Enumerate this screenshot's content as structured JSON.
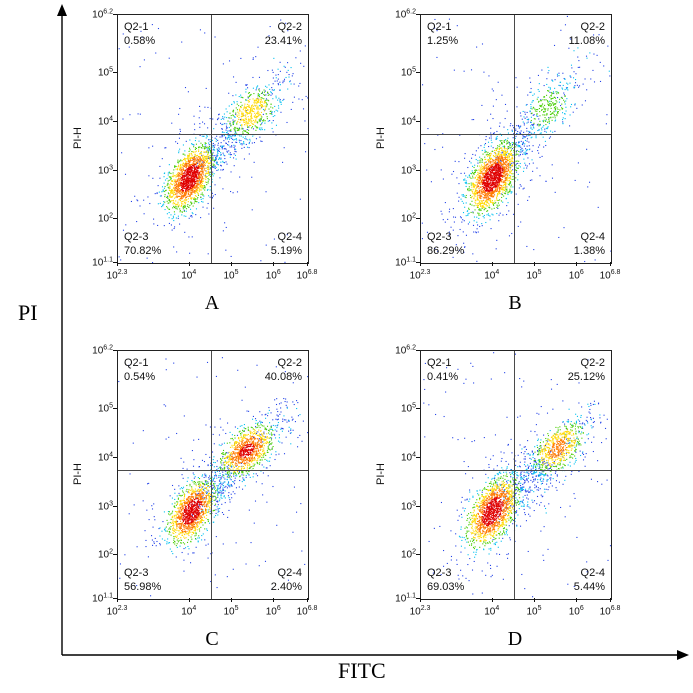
{
  "chart_data": {
    "type": "scatter",
    "subtype": "flow_cytometry_pseudocolor_density",
    "outer_axes": {
      "y_label": "PI",
      "x_label": "FITC"
    },
    "axes": {
      "scale": "log10",
      "base": "10",
      "xlim_log10": [
        2.3,
        6.8
      ],
      "ylim_log10": [
        1.1,
        6.2
      ],
      "x_ticks": [
        {
          "v": 2.3,
          "exp": "2.3"
        },
        {
          "v": 4,
          "exp": "4"
        },
        {
          "v": 5,
          "exp": "5"
        },
        {
          "v": 6,
          "exp": "6"
        },
        {
          "v": 6.8,
          "exp": "6.8"
        }
      ],
      "y_ticks": [
        {
          "v": 6.2,
          "exp": "6.2"
        },
        {
          "v": 5,
          "exp": "5"
        },
        {
          "v": 4,
          "exp": "4"
        },
        {
          "v": 3,
          "exp": "3"
        },
        {
          "v": 2,
          "exp": "2"
        },
        {
          "v": 1.1,
          "exp": "1.1"
        }
      ]
    },
    "gate": {
      "x_log10": 4.5,
      "y_log10": 3.75
    },
    "render": {
      "colors": [
        "#e00000",
        "#ff7a00",
        "#ffd900",
        "#46cd00",
        "#00c0f0",
        "#2342e8"
      ],
      "thresholds": [
        -0.4,
        -1.0,
        -1.8,
        -2.8,
        -4.3
      ]
    },
    "panels": [
      {
        "label": "A",
        "y_axis_label": "PI-H",
        "seed": 11,
        "quadrants": [
          {
            "name": "Q2-1",
            "pct": "0.58%"
          },
          {
            "name": "Q2-2",
            "pct": "23.41%"
          },
          {
            "name": "Q2-3",
            "pct": "70.82%"
          },
          {
            "name": "Q2-4",
            "pct": "5.19%"
          }
        ],
        "clusters": [
          {
            "type": "gauss",
            "cx": 4.0,
            "cy": 2.85,
            "sx": 0.26,
            "sy": 0.31,
            "rho": 0.5,
            "n": 1600,
            "tail": 0.12
          },
          {
            "type": "gauss",
            "cx": 5.45,
            "cy": 4.2,
            "sx": 0.3,
            "sy": 0.26,
            "rho": 0.45,
            "n": 520,
            "tail": 0.15
          },
          {
            "type": "line",
            "x1": 4.25,
            "y1": 3.05,
            "x2": 5.15,
            "y2": 3.9,
            "spread": 0.2,
            "n": 230
          },
          {
            "type": "line",
            "x1": 5.6,
            "y1": 4.35,
            "x2": 6.45,
            "y2": 5.1,
            "spread": 0.22,
            "n": 70
          },
          {
            "type": "uniform",
            "n": 90
          }
        ]
      },
      {
        "label": "B",
        "y_axis_label": "PI-H",
        "seed": 22,
        "quadrants": [
          {
            "name": "Q2-1",
            "pct": "1.25%"
          },
          {
            "name": "Q2-2",
            "pct": "11.08%"
          },
          {
            "name": "Q2-3",
            "pct": "86.29%"
          },
          {
            "name": "Q2-4",
            "pct": "1.38%"
          }
        ],
        "clusters": [
          {
            "type": "gauss",
            "cx": 4.0,
            "cy": 2.85,
            "sx": 0.27,
            "sy": 0.33,
            "rho": 0.5,
            "n": 1800,
            "tail": 0.12
          },
          {
            "type": "gauss",
            "cx": 5.3,
            "cy": 4.3,
            "sx": 0.33,
            "sy": 0.3,
            "rho": 0.45,
            "n": 280,
            "tail": 0.2
          },
          {
            "type": "line",
            "x1": 4.2,
            "y1": 3.1,
            "x2": 5.0,
            "y2": 4.0,
            "spread": 0.22,
            "n": 200
          },
          {
            "type": "line",
            "x1": 5.45,
            "y1": 4.5,
            "x2": 6.3,
            "y2": 5.2,
            "spread": 0.24,
            "n": 50
          },
          {
            "type": "uniform",
            "n": 80
          }
        ]
      },
      {
        "label": "C",
        "y_axis_label": "PI-H",
        "seed": 33,
        "quadrants": [
          {
            "name": "Q2-1",
            "pct": "0.54%"
          },
          {
            "name": "Q2-2",
            "pct": "40.08%"
          },
          {
            "name": "Q2-3",
            "pct": "56.98%"
          },
          {
            "name": "Q2-4",
            "pct": "2.40%"
          }
        ],
        "clusters": [
          {
            "type": "gauss",
            "cx": 4.05,
            "cy": 2.9,
            "sx": 0.26,
            "sy": 0.3,
            "rho": 0.5,
            "n": 1250,
            "tail": 0.12
          },
          {
            "type": "gauss",
            "cx": 5.35,
            "cy": 4.15,
            "sx": 0.3,
            "sy": 0.25,
            "rho": 0.5,
            "n": 950,
            "tail": 0.13
          },
          {
            "type": "line",
            "x1": 4.3,
            "y1": 3.05,
            "x2": 5.0,
            "y2": 3.85,
            "spread": 0.2,
            "n": 240
          },
          {
            "type": "line",
            "x1": 5.55,
            "y1": 4.3,
            "x2": 6.4,
            "y2": 5.0,
            "spread": 0.22,
            "n": 80
          },
          {
            "type": "uniform",
            "n": 85
          }
        ]
      },
      {
        "label": "D",
        "y_axis_label": "PI-H",
        "seed": 44,
        "quadrants": [
          {
            "name": "Q2-1",
            "pct": "0.41%"
          },
          {
            "name": "Q2-2",
            "pct": "25.12%"
          },
          {
            "name": "Q2-3",
            "pct": "69.03%"
          },
          {
            "name": "Q2-4",
            "pct": "5.44%"
          }
        ],
        "clusters": [
          {
            "type": "gauss",
            "cx": 4.0,
            "cy": 2.9,
            "sx": 0.28,
            "sy": 0.33,
            "rho": 0.5,
            "n": 1500,
            "tail": 0.13
          },
          {
            "type": "gauss",
            "cx": 5.55,
            "cy": 4.2,
            "sx": 0.3,
            "sy": 0.26,
            "rho": 0.5,
            "n": 620,
            "tail": 0.15
          },
          {
            "type": "line",
            "x1": 4.3,
            "y1": 3.05,
            "x2": 5.3,
            "y2": 3.95,
            "spread": 0.26,
            "n": 320
          },
          {
            "type": "line",
            "x1": 5.7,
            "y1": 4.35,
            "x2": 6.5,
            "y2": 5.05,
            "spread": 0.22,
            "n": 70
          },
          {
            "type": "uniform",
            "n": 95
          }
        ]
      }
    ]
  }
}
